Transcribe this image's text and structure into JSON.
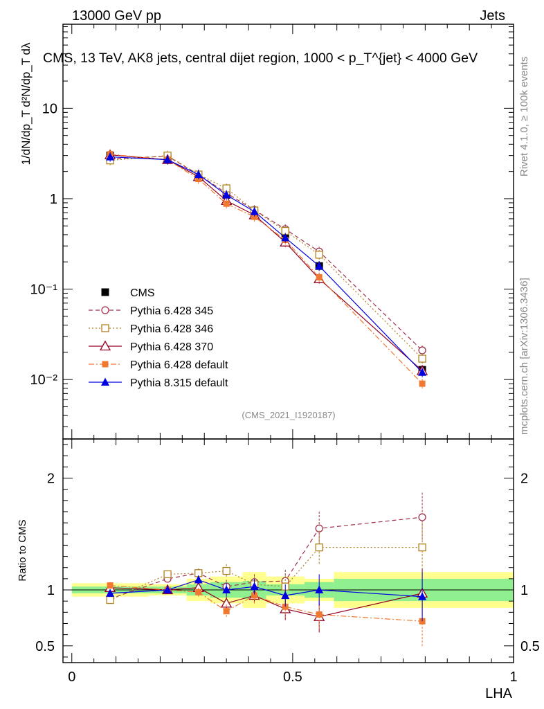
{
  "header": {
    "energy": "13000 GeV pp",
    "category": "Jets",
    "plot_title": "CMS, 13 TeV, AK8 jets, central dijet region, 1000 < p_T^{jet} < 4000 GeV",
    "rivet_label": "Rivet 4.1.0, ≥ 100k events",
    "mcplots_label": "mcplots.cern.ch [arXiv:1306.3436]",
    "analysis_tag": "(CMS_2021_I1920187)"
  },
  "colors": {
    "cms": "#000000",
    "p345": "#a0304a",
    "p346": "#b08020",
    "p370": "#900020",
    "p6def": "#f07830",
    "p8def": "#0000e0",
    "band_inner": "#90f090",
    "band_outer": "#ffff90"
  },
  "chart_data": [
    {
      "type": "scatter",
      "panel": "main",
      "ylabel": "1/dN/dp_T d²N/dp_T dλ",
      "yscale": "log",
      "ylim": [
        0.0022,
        85
      ],
      "xlim": [
        -0.02,
        1.0
      ],
      "ytick_labels": [
        "10⁻²",
        "10⁻¹",
        "1",
        "10"
      ],
      "x": [
        0.0867,
        0.2167,
        0.2867,
        0.35,
        0.4133,
        0.4833,
        0.56,
        0.7933
      ],
      "series": [
        {
          "name": "CMS",
          "key": "cms",
          "marker": "square-filled",
          "dash": "none",
          "values": [
            3.0,
            2.7,
            1.75,
            1.1,
            0.7,
            0.4,
            0.18,
            0.0128
          ]
        },
        {
          "name": "Pythia 6.428 345",
          "key": "p345",
          "marker": "circle-open",
          "dash": "6,4",
          "values": [
            2.75,
            2.95,
            1.85,
            1.15,
            0.75,
            0.46,
            0.26,
            0.021
          ]
        },
        {
          "name": "Pythia 6.428 346",
          "key": "p346",
          "marker": "square-open",
          "dash": "2,3",
          "values": [
            2.65,
            3.0,
            1.85,
            1.3,
            0.74,
            0.44,
            0.24,
            0.017
          ]
        },
        {
          "name": "Pythia 6.428 370",
          "key": "p370",
          "marker": "triangle-open",
          "dash": "none",
          "values": [
            3.05,
            2.7,
            1.75,
            0.95,
            0.66,
            0.33,
            0.13,
            0.0125
          ]
        },
        {
          "name": "Pythia 6.428 default",
          "key": "p6def",
          "marker": "square-filled-small",
          "dash": "8,3,2,3",
          "values": [
            3.1,
            2.7,
            1.65,
            0.88,
            0.63,
            0.35,
            0.135,
            0.009
          ]
        },
        {
          "name": "Pythia 8.315 default",
          "key": "p8def",
          "marker": "triangle-filled",
          "dash": "none",
          "values": [
            2.9,
            2.7,
            1.85,
            1.1,
            0.72,
            0.37,
            0.18,
            0.012
          ]
        }
      ],
      "legend_position": "lower-left"
    },
    {
      "type": "scatter",
      "panel": "ratio",
      "xlabel": "LHA",
      "ylabel": "Ratio to CMS",
      "ylim": [
        0.35,
        2.35
      ],
      "xlim": [
        -0.02,
        1.0
      ],
      "ytick_labels": [
        "0.5",
        "1",
        "2"
      ],
      "xtick_labels": [
        "0",
        "0.5",
        "1"
      ],
      "bins": [
        {
          "lo": 0.0,
          "hi": 0.1733,
          "inner": 0.03,
          "outer": 0.06
        },
        {
          "lo": 0.1733,
          "hi": 0.26,
          "inner": 0.03,
          "outer": 0.05
        },
        {
          "lo": 0.26,
          "hi": 0.3133,
          "inner": 0.05,
          "outer": 0.1
        },
        {
          "lo": 0.3133,
          "hi": 0.3867,
          "inner": 0.07,
          "outer": 0.12
        },
        {
          "lo": 0.3867,
          "hi": 0.44,
          "inner": 0.08,
          "outer": 0.16
        },
        {
          "lo": 0.44,
          "hi": 0.5267,
          "inner": 0.05,
          "outer": 0.12
        },
        {
          "lo": 0.5267,
          "hi": 0.5933,
          "inner": 0.07,
          "outer": 0.1
        },
        {
          "lo": 0.5933,
          "hi": 1.0,
          "inner": 0.1,
          "outer": 0.16
        }
      ],
      "x": [
        0.0867,
        0.2167,
        0.2867,
        0.35,
        0.4133,
        0.4833,
        0.56,
        0.7933
      ],
      "series": [
        {
          "name": "Pythia 6.428 345",
          "key": "p345",
          "values": [
            0.92,
            1.1,
            1.15,
            1.03,
            1.07,
            1.08,
            1.55,
            1.65
          ],
          "errors": [
            0.01,
            0.02,
            0.04,
            0.06,
            0.07,
            0.1,
            0.15,
            0.22
          ]
        },
        {
          "name": "Pythia 6.428 346",
          "key": "p346",
          "values": [
            0.91,
            1.14,
            1.15,
            1.17,
            1.05,
            1.03,
            1.38,
            1.38
          ],
          "errors": [
            0.01,
            0.02,
            0.04,
            0.06,
            0.07,
            0.1,
            0.15,
            0.22
          ]
        },
        {
          "name": "Pythia 6.428 370",
          "key": "p370",
          "values": [
            1.02,
            1.0,
            1.02,
            0.88,
            0.95,
            0.83,
            0.76,
            0.97
          ],
          "errors": [
            0.01,
            0.02,
            0.04,
            0.06,
            0.07,
            0.1,
            0.14,
            0.22
          ]
        },
        {
          "name": "Pythia 6.428 default",
          "key": "p6def",
          "values": [
            1.04,
            1.0,
            0.98,
            0.81,
            0.95,
            0.85,
            0.78,
            0.72
          ],
          "errors": [
            0.01,
            0.02,
            0.04,
            0.06,
            0.07,
            0.1,
            0.14,
            0.23
          ]
        },
        {
          "name": "Pythia 8.315 default",
          "key": "p8def",
          "values": [
            0.97,
            1.0,
            1.09,
            1.0,
            1.03,
            0.95,
            1.0,
            0.94
          ],
          "errors": [
            0.01,
            0.02,
            0.04,
            0.06,
            0.07,
            0.1,
            0.14,
            0.22
          ]
        }
      ]
    }
  ]
}
